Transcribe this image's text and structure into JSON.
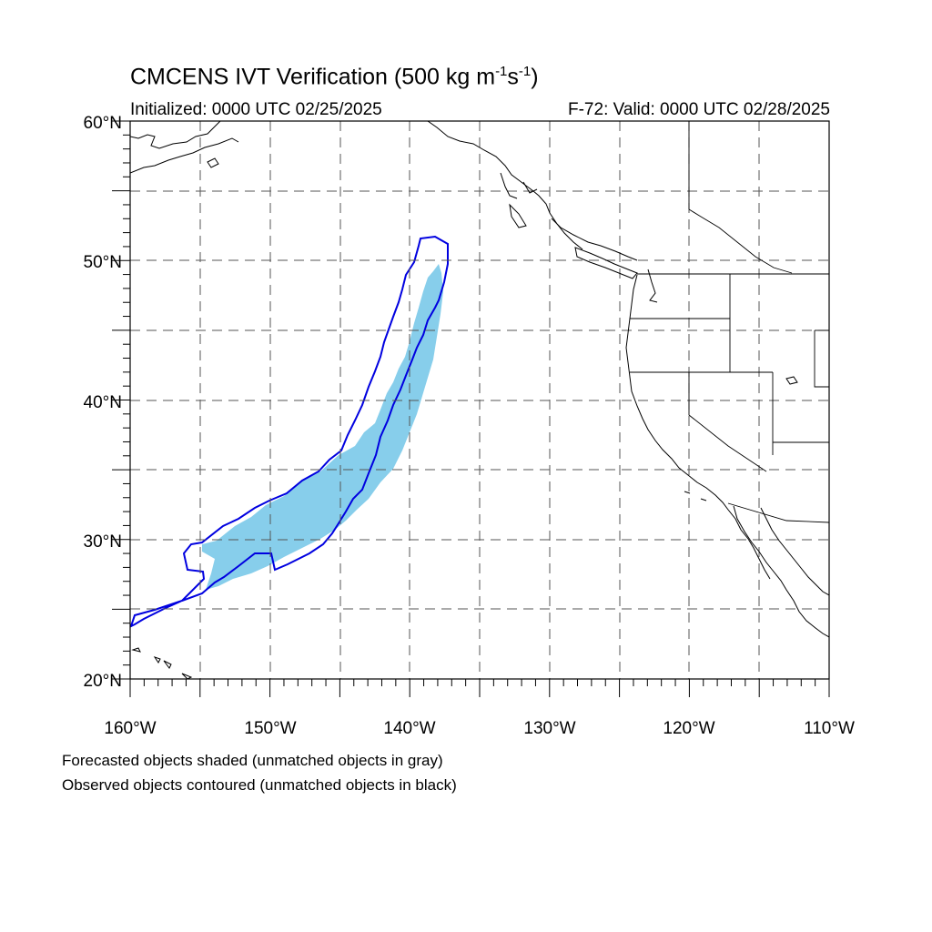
{
  "title": {
    "main": "CMCENS IVT Verification (500 kg m",
    "sup1": "-1",
    "mid": "s",
    "sup2": "-1",
    "end": ")"
  },
  "init_label": "Initialized: 0000 UTC 02/25/2025",
  "valid_label": "F-72: Valid: 0000 UTC 02/28/2025",
  "lat_labels": [
    "60°N",
    "50°N",
    "40°N",
    "30°N",
    "20°N"
  ],
  "lon_labels": [
    "160°W",
    "150°W",
    "140°W",
    "130°W",
    "120°W",
    "110°W"
  ],
  "caption_forecast": "Forecasted objects shaded (unmatched objects in gray)",
  "caption_observed": "Observed objects contoured (unmatched objects in black)",
  "map": {
    "lon_range": [
      -160,
      -110
    ],
    "lat_range": [
      20,
      60
    ],
    "grid": "dashed, every 5 degrees",
    "colors": {
      "forecast_fill": "#87CEEB",
      "observed_contour": "#0000E0",
      "coastline": "#000000"
    }
  }
}
